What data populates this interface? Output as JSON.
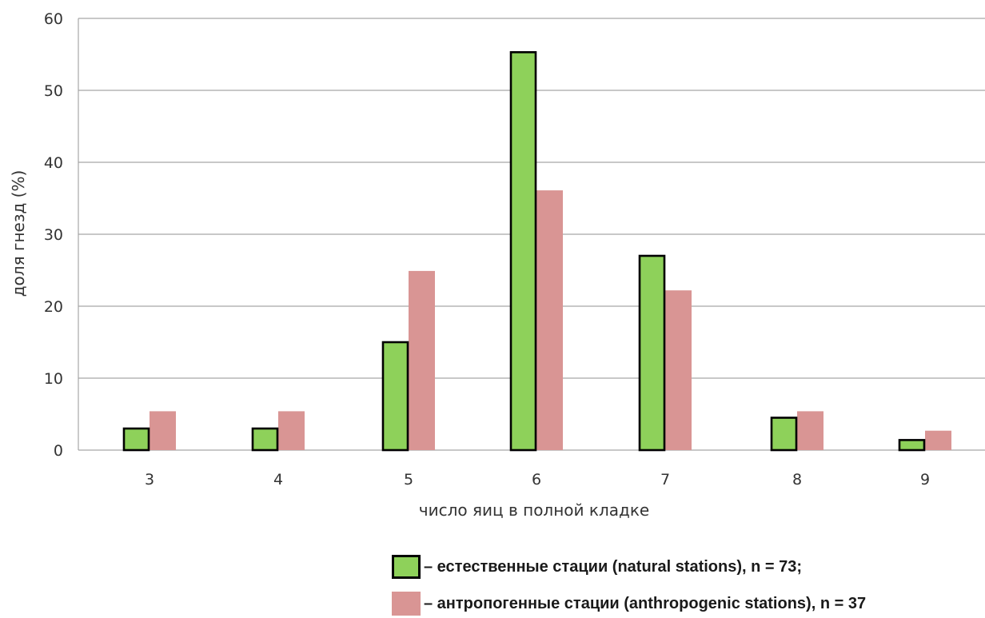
{
  "chart_data": {
    "type": "bar",
    "categories": [
      "3",
      "4",
      "5",
      "6",
      "7",
      "8",
      "9"
    ],
    "series": [
      {
        "name": "– естественные стации (natural stations), n = 73;",
        "values": [
          3.0,
          3.0,
          15.0,
          55.3,
          27.0,
          4.5,
          1.4
        ],
        "color": "#8ed15a",
        "stroke": "#000000"
      },
      {
        "name": "– антропогенные стации (anthropogenic stations), n = 37",
        "values": [
          5.4,
          5.4,
          24.9,
          36.1,
          22.2,
          5.4,
          2.7
        ],
        "color": "#d99594",
        "stroke": "none"
      }
    ],
    "yticks": [
      "0",
      "10",
      "20",
      "30",
      "40",
      "50",
      "60"
    ],
    "ylim": [
      0,
      60
    ],
    "xlabel": "число яиц в полной кладке",
    "ylabel": "доля гнезд (%)",
    "grid": true,
    "legend_position": "bottom"
  }
}
